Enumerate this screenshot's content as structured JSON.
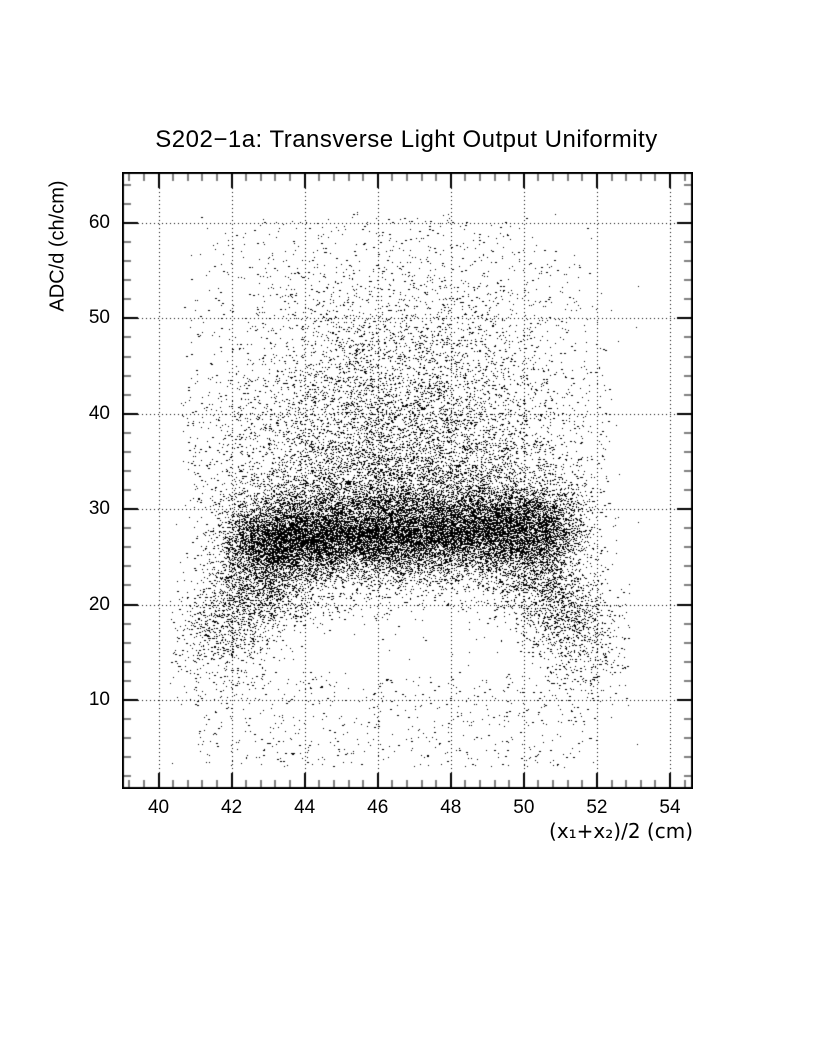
{
  "page": {
    "background": "#ffffff"
  },
  "chart_data": {
    "type": "scatter",
    "title": "S202−1a: Transverse Light Output Uniformity",
    "xlabel": "(x₁+x₂)/2 (cm)",
    "ylabel": "ADC/d (ch/cm)",
    "x_range": [
      39.0,
      54.63
    ],
    "y_range": [
      0.66,
      65.35
    ],
    "x_major_ticks": [
      40,
      42,
      44,
      46,
      48,
      50,
      52,
      54
    ],
    "x_minor_step": 0.4,
    "y_major_ticks": [
      10,
      20,
      30,
      40,
      50,
      60
    ],
    "y_minor_step": 2,
    "grid": "dotted lines at major ticks, both axes",
    "legend": "none",
    "point_color": "#000000",
    "background_color": "#ffffff",
    "n_points_approx": 31000,
    "seed": 20211,
    "point_cloud": {
      "description": "Dense horizontal band at ADC/d ~27 ch/cm for x 42-51 cm; diffuse cloud above it fading out toward 60; down-sloping tails at both band ends reaching ~10; sparse scatter below.",
      "components": [
        {
          "kind": "band",
          "n": 19000,
          "x_min": 42.3,
          "x_max": 51.0,
          "x_edge_sigma": 0.55,
          "y_center": 27.4,
          "y_slope": 0.12,
          "y_sigma": 2.0,
          "y_sigma_wide": 3.8,
          "y_wide_frac": 0.28
        },
        {
          "kind": "half_up",
          "n": 7500,
          "x_mean": 46.6,
          "x_sigma": 2.5,
          "x_clip": [
            40.6,
            52.4
          ],
          "y_base": 30,
          "y_sigma": 13,
          "y_clip": [
            30,
            61
          ]
        },
        {
          "kind": "corr",
          "n": 2200,
          "x_mean": 42.6,
          "y_mean": 21.5,
          "x_sigma": 1.05,
          "y_sigma": 4.5,
          "rho": 0.55,
          "x_clip": [
            40.3,
            44.8
          ],
          "y_clip": [
            7,
            30
          ]
        },
        {
          "kind": "corr",
          "n": 1600,
          "x_mean": 50.9,
          "y_mean": 20.0,
          "x_sigma": 0.9,
          "y_sigma": 4.0,
          "rho": -0.5,
          "x_clip": [
            48.8,
            52.9
          ],
          "y_clip": [
            8,
            28
          ]
        },
        {
          "kind": "uniform",
          "n": 550,
          "x": [
            41.0,
            52.0
          ],
          "y": [
            3.0,
            13.0
          ]
        },
        {
          "kind": "uniform",
          "n": 150,
          "x": [
            40.2,
            53.2
          ],
          "y": [
            3.0,
            62.0
          ]
        }
      ]
    }
  }
}
